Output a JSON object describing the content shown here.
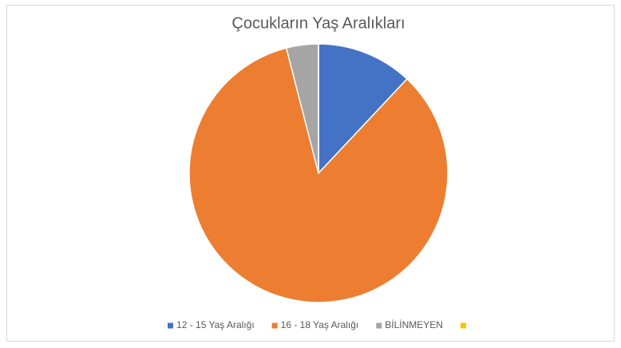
{
  "chart_data": {
    "type": "pie",
    "title": "Çocukların Yaş Aralıkları",
    "categories": [
      "12 - 15 Yaş Aralığı",
      "16 - 18 Yaş Aralığı",
      "BİLİNMEYEN",
      null
    ],
    "values": [
      12,
      84,
      4,
      0
    ],
    "colors": [
      "#4472c4",
      "#ed7d31",
      "#a5a5a5",
      "#ffc000"
    ],
    "legend": "bottom"
  }
}
